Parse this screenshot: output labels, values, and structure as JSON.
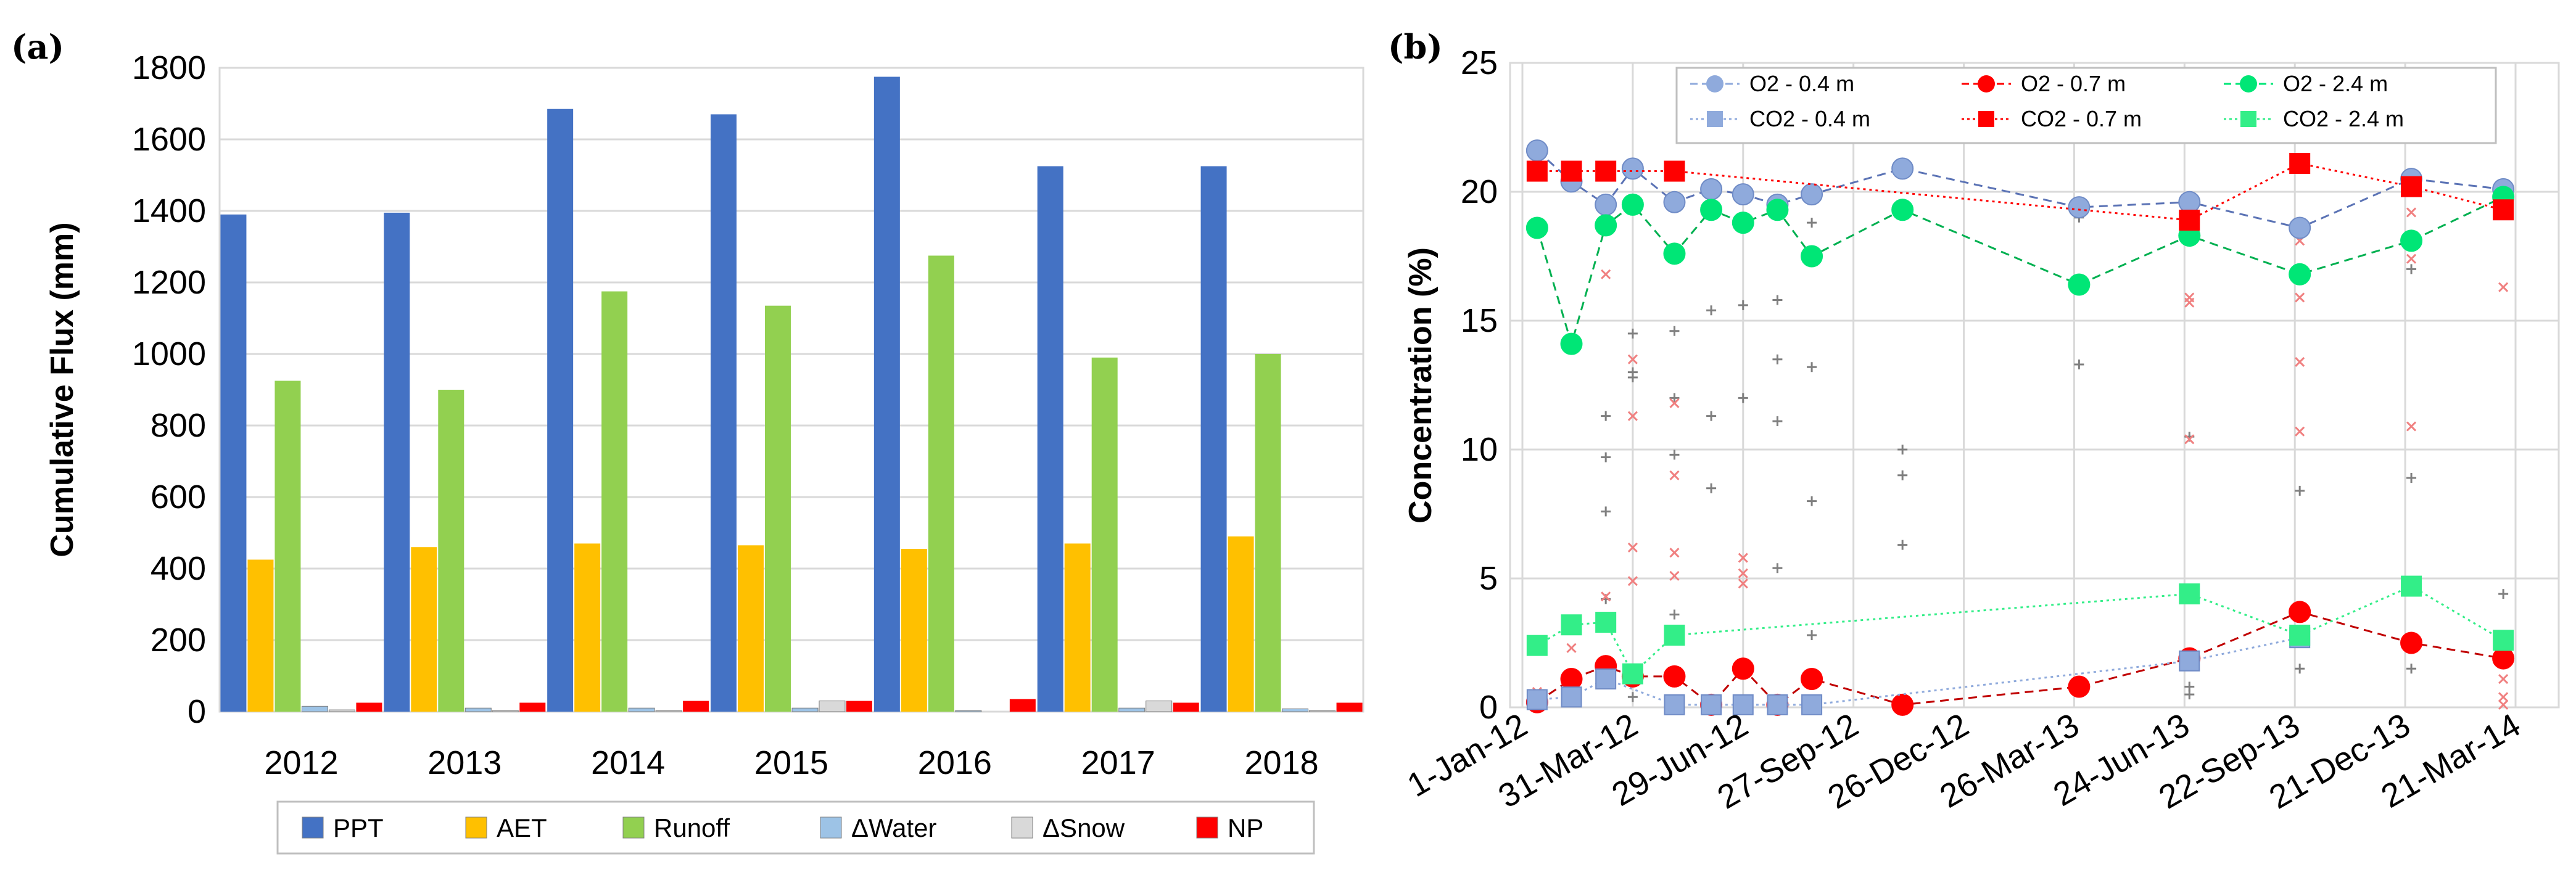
{
  "chart_data": [
    {
      "panel_label": "(a)",
      "type": "bar",
      "title": "",
      "xlabel": "",
      "ylabel": "Cumulative Flux (mm)",
      "ylim": [
        0,
        1800
      ],
      "yticks": [
        "0",
        "200",
        "400",
        "600",
        "800",
        "1000",
        "1200",
        "1400",
        "1600",
        "1800"
      ],
      "grid": true,
      "legend_position": "bottom",
      "categories": [
        "2012",
        "2013",
        "2014",
        "2015",
        "2016",
        "2017",
        "2018"
      ],
      "series": [
        {
          "name": "PPT",
          "color": "#4472c4",
          "values": [
            1390,
            1395,
            1685,
            1670,
            1775,
            1525,
            1525
          ]
        },
        {
          "name": "AET",
          "color": "#ffc000",
          "values": [
            425,
            460,
            470,
            465,
            455,
            470,
            490
          ]
        },
        {
          "name": "Runoff",
          "color": "#92d050",
          "values": [
            925,
            900,
            1175,
            1135,
            1275,
            990,
            1000
          ]
        },
        {
          "name": "ΔWater",
          "color": "#9dc3e6",
          "values": [
            15,
            10,
            10,
            10,
            3,
            10,
            8
          ]
        },
        {
          "name": "ΔSnow",
          "color": "#d9d9d9",
          "values": [
            5,
            3,
            3,
            30,
            0,
            30,
            3
          ]
        },
        {
          "name": "NP",
          "color": "#ff0000",
          "values": [
            25,
            25,
            30,
            30,
            35,
            25,
            25
          ]
        }
      ]
    },
    {
      "panel_label": "(b)",
      "type": "line",
      "title": "",
      "xlabel": "",
      "ylabel": "Concentration (%)",
      "ylim": [
        0,
        25
      ],
      "yticks": [
        "0",
        "5",
        "10",
        "15",
        "20",
        "25"
      ],
      "xlim": [
        0,
        810
      ],
      "xticks": [
        "1-Jan-12",
        "31-Mar-12",
        "29-Jun-12",
        "27-Sep-12",
        "26-Dec-12",
        "26-Mar-13",
        "24-Jun-13",
        "22-Sep-13",
        "21-Dec-13",
        "21-Mar-14"
      ],
      "xtick_days": [
        0,
        90,
        180,
        270,
        360,
        450,
        540,
        630,
        720,
        810
      ],
      "grid": true,
      "legend_position": "top",
      "series": [
        {
          "name": "O2 - 0.4 m",
          "color": "#8faadc",
          "line": "dash",
          "marker": "circle",
          "x": [
            12,
            40,
            68,
            90,
            124,
            154,
            180,
            208,
            236,
            310,
            454,
            544,
            634,
            725,
            800
          ],
          "y": [
            21.6,
            20.4,
            19.5,
            20.9,
            19.6,
            20.1,
            19.9,
            19.5,
            19.9,
            20.9,
            19.4,
            19.6,
            18.6,
            20.5,
            20.1
          ]
        },
        {
          "name": "O2 - 0.7 m",
          "color": "#ff0000",
          "line": "dash",
          "marker": "circle",
          "x": [
            12,
            40,
            68,
            90,
            124,
            154,
            180,
            208,
            236,
            310,
            454,
            544,
            634,
            725,
            800
          ],
          "y": [
            0.2,
            1.1,
            1.6,
            1.2,
            1.2,
            0.1,
            1.5,
            0.1,
            1.1,
            0.1,
            0.8,
            1.9,
            3.7,
            2.5,
            1.9
          ]
        },
        {
          "name": "O2 - 2.4 m",
          "color": "#00e676",
          "line": "dash",
          "marker": "circle",
          "x": [
            12,
            40,
            68,
            90,
            124,
            154,
            180,
            208,
            236,
            310,
            454,
            544,
            634,
            725,
            800
          ],
          "y": [
            18.6,
            14.1,
            18.7,
            19.5,
            17.6,
            19.3,
            18.8,
            19.3,
            17.5,
            19.3,
            16.4,
            18.3,
            16.8,
            18.1,
            19.8
          ]
        },
        {
          "name": "CO2 - 0.4 m",
          "color": "#8faadc",
          "line": "dot",
          "marker": "square",
          "x": [
            12,
            40,
            68,
            124,
            154,
            180,
            208,
            236,
            544,
            634
          ],
          "y": [
            0.3,
            0.4,
            1.1,
            0.1,
            0.1,
            0.1,
            0.1,
            0.1,
            1.8,
            2.7
          ]
        },
        {
          "name": "CO2 - 0.7 m",
          "color": "#ff0000",
          "line": "dot",
          "marker": "square",
          "x": [
            12,
            40,
            68,
            124,
            544,
            634,
            725,
            800
          ],
          "y": [
            20.8,
            20.8,
            20.8,
            20.8,
            18.9,
            21.1,
            20.2,
            19.3
          ]
        },
        {
          "name": "CO2 - 2.4 m",
          "color": "#33ee88",
          "line": "dot",
          "marker": "square",
          "x": [
            12,
            40,
            68,
            90,
            124,
            544,
            634,
            725,
            800
          ],
          "y": [
            2.4,
            3.2,
            3.3,
            1.3,
            2.8,
            4.4,
            2.8,
            4.7,
            2.6
          ]
        }
      ],
      "scatter_plus_grey": [
        [
          12,
          0.2
        ],
        [
          40,
          0.6
        ],
        [
          68,
          4.2
        ],
        [
          68,
          7.6
        ],
        [
          68,
          9.7
        ],
        [
          68,
          11.3
        ],
        [
          90,
          12.8
        ],
        [
          90,
          14.5
        ],
        [
          90,
          13.0
        ],
        [
          90,
          0.4
        ],
        [
          124,
          14.6
        ],
        [
          124,
          12.0
        ],
        [
          124,
          9.8
        ],
        [
          124,
          3.6
        ],
        [
          154,
          15.4
        ],
        [
          154,
          11.3
        ],
        [
          154,
          8.5
        ],
        [
          180,
          12.0
        ],
        [
          180,
          15.6
        ],
        [
          208,
          15.8
        ],
        [
          208,
          13.5
        ],
        [
          208,
          11.1
        ],
        [
          208,
          5.4
        ],
        [
          236,
          18.8
        ],
        [
          236,
          13.2
        ],
        [
          236,
          8.0
        ],
        [
          236,
          2.8
        ],
        [
          310,
          10.0
        ],
        [
          310,
          9.0
        ],
        [
          310,
          6.3
        ],
        [
          454,
          19.0
        ],
        [
          454,
          13.3
        ],
        [
          544,
          10.5
        ],
        [
          544,
          0.8
        ],
        [
          544,
          0.5
        ],
        [
          634,
          8.4
        ],
        [
          634,
          1.5
        ],
        [
          634,
          2.8
        ],
        [
          725,
          17.0
        ],
        [
          725,
          8.9
        ],
        [
          725,
          1.5
        ],
        [
          800,
          4.4
        ],
        [
          800,
          19.8
        ]
      ],
      "scatter_x_red": [
        [
          12,
          0.6
        ],
        [
          40,
          2.3
        ],
        [
          68,
          16.8
        ],
        [
          68,
          4.3
        ],
        [
          90,
          13.5
        ],
        [
          90,
          11.3
        ],
        [
          90,
          6.2
        ],
        [
          90,
          4.9
        ],
        [
          124,
          11.8
        ],
        [
          124,
          9.0
        ],
        [
          124,
          6.0
        ],
        [
          124,
          5.1
        ],
        [
          180,
          5.8
        ],
        [
          180,
          5.2
        ],
        [
          180,
          4.8
        ],
        [
          544,
          15.9
        ],
        [
          544,
          15.7
        ],
        [
          544,
          10.4
        ],
        [
          634,
          15.9
        ],
        [
          634,
          13.4
        ],
        [
          634,
          10.7
        ],
        [
          634,
          18.1
        ],
        [
          725,
          19.2
        ],
        [
          725,
          17.4
        ],
        [
          725,
          10.9
        ],
        [
          800,
          16.3
        ],
        [
          800,
          1.1
        ],
        [
          800,
          0.4
        ],
        [
          800,
          0.1
        ]
      ]
    }
  ]
}
